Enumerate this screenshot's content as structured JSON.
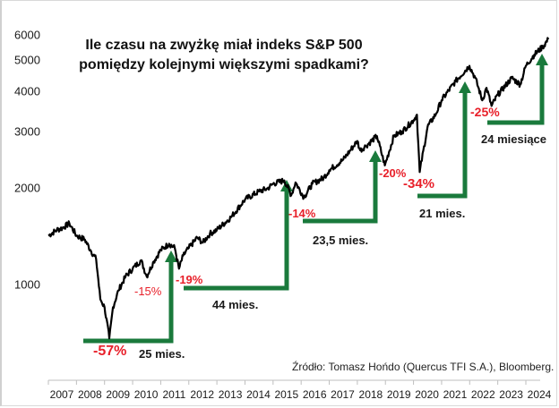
{
  "chart_data": {
    "type": "line",
    "title": "Ile czasu na zwyżkę miał indeks S&P 500 pomiędzy kolejnymi większymi spadkami?",
    "title_lines": [
      "Ile czasu na zwyżkę miał indeks S&P 500",
      "pomiędzy kolejnymi większymi spadkami?"
    ],
    "xlabel": "",
    "ylabel": "",
    "y_scale": "log",
    "ylim": [
      650,
      6200
    ],
    "xlim": [
      2007,
      2024.85
    ],
    "grid": false,
    "legend": "none",
    "yticks": [
      "6000",
      "5000",
      "4000",
      "3000",
      "2000",
      "1000"
    ],
    "xticks": [
      "2007",
      "2008",
      "2009",
      "2010",
      "2011",
      "2012",
      "2013",
      "2014",
      "2015",
      "2016",
      "2017",
      "2018",
      "2019",
      "2020",
      "2021",
      "2022",
      "2023",
      "2024"
    ],
    "series": [
      {
        "name": "S&P 500",
        "color": "#000000",
        "x": [
          2007.0,
          2007.3,
          2007.5,
          2007.75,
          2008.0,
          2008.3,
          2008.5,
          2008.7,
          2008.85,
          2009.0,
          2009.17,
          2009.3,
          2009.5,
          2009.75,
          2010.0,
          2010.3,
          2010.5,
          2010.75,
          2011.0,
          2011.3,
          2011.5,
          2011.65,
          2011.8,
          2012.0,
          2012.3,
          2012.5,
          2012.75,
          2013.0,
          2013.5,
          2014.0,
          2014.5,
          2014.8,
          2015.0,
          2015.4,
          2015.65,
          2015.8,
          2016.1,
          2016.4,
          2016.8,
          2017.0,
          2017.5,
          2018.0,
          2018.1,
          2018.3,
          2018.7,
          2018.98,
          2019.3,
          2019.6,
          2020.0,
          2020.12,
          2020.22,
          2020.5,
          2020.8,
          2021.0,
          2021.5,
          2021.99,
          2022.2,
          2022.45,
          2022.6,
          2022.78,
          2023.0,
          2023.5,
          2023.8,
          2024.0,
          2024.3,
          2024.6,
          2024.8
        ],
        "values": [
          1420,
          1480,
          1500,
          1550,
          1420,
          1380,
          1280,
          1200,
          900,
          850,
          680,
          850,
          960,
          1060,
          1120,
          1190,
          1060,
          1180,
          1280,
          1340,
          1300,
          1120,
          1230,
          1300,
          1400,
          1350,
          1440,
          1480,
          1620,
          1840,
          1950,
          1990,
          2060,
          2110,
          1900,
          2080,
          1870,
          2060,
          2150,
          2270,
          2450,
          2800,
          2620,
          2700,
          2900,
          2350,
          2900,
          3000,
          3250,
          3380,
          2240,
          3100,
          3400,
          3750,
          4300,
          4800,
          4400,
          3750,
          4100,
          3600,
          3900,
          4400,
          4200,
          4800,
          5200,
          5500,
          5800
        ]
      }
    ],
    "annotations": [
      {
        "label": "-57%",
        "type": "drawdown",
        "color": "#e8202a"
      },
      {
        "label": "25 mies.",
        "type": "recovery_duration_months",
        "value": 25
      },
      {
        "label": "-15%",
        "type": "drawdown",
        "color": "#e8202a"
      },
      {
        "label": "-19%",
        "type": "drawdown",
        "color": "#e8202a"
      },
      {
        "label": "44 mies.",
        "type": "recovery_duration_months",
        "value": 44
      },
      {
        "label": "-14%",
        "type": "drawdown",
        "color": "#e8202a"
      },
      {
        "label": "23,5 mies.",
        "type": "recovery_duration_months",
        "value": 23.5
      },
      {
        "label": "-20%",
        "type": "drawdown",
        "color": "#e8202a"
      },
      {
        "label": "-34%",
        "type": "drawdown",
        "color": "#e8202a"
      },
      {
        "label": "21 mies.",
        "type": "recovery_duration_months",
        "value": 21
      },
      {
        "label": "-25%",
        "type": "drawdown",
        "color": "#e8202a"
      },
      {
        "label": "24 miesiące",
        "type": "recovery_duration_months",
        "value": 24
      }
    ],
    "arrow_color": "#1a7a3c",
    "source": "Źródło: Tomasz Hońdo (Quercus TFI S.A.), Bloomberg."
  },
  "labels": {
    "dd_57": "-57%",
    "dur_25": "25 mies.",
    "dd_15": "-15%",
    "dd_19": "-19%",
    "dur_44": "44 mies.",
    "dd_14": "-14%",
    "dur_235": "23,5 mies.",
    "dd_20": "-20%",
    "dd_34": "-34%",
    "dur_21": "21 mies.",
    "dd_25": "-25%",
    "dur_24": "24 miesiące"
  }
}
